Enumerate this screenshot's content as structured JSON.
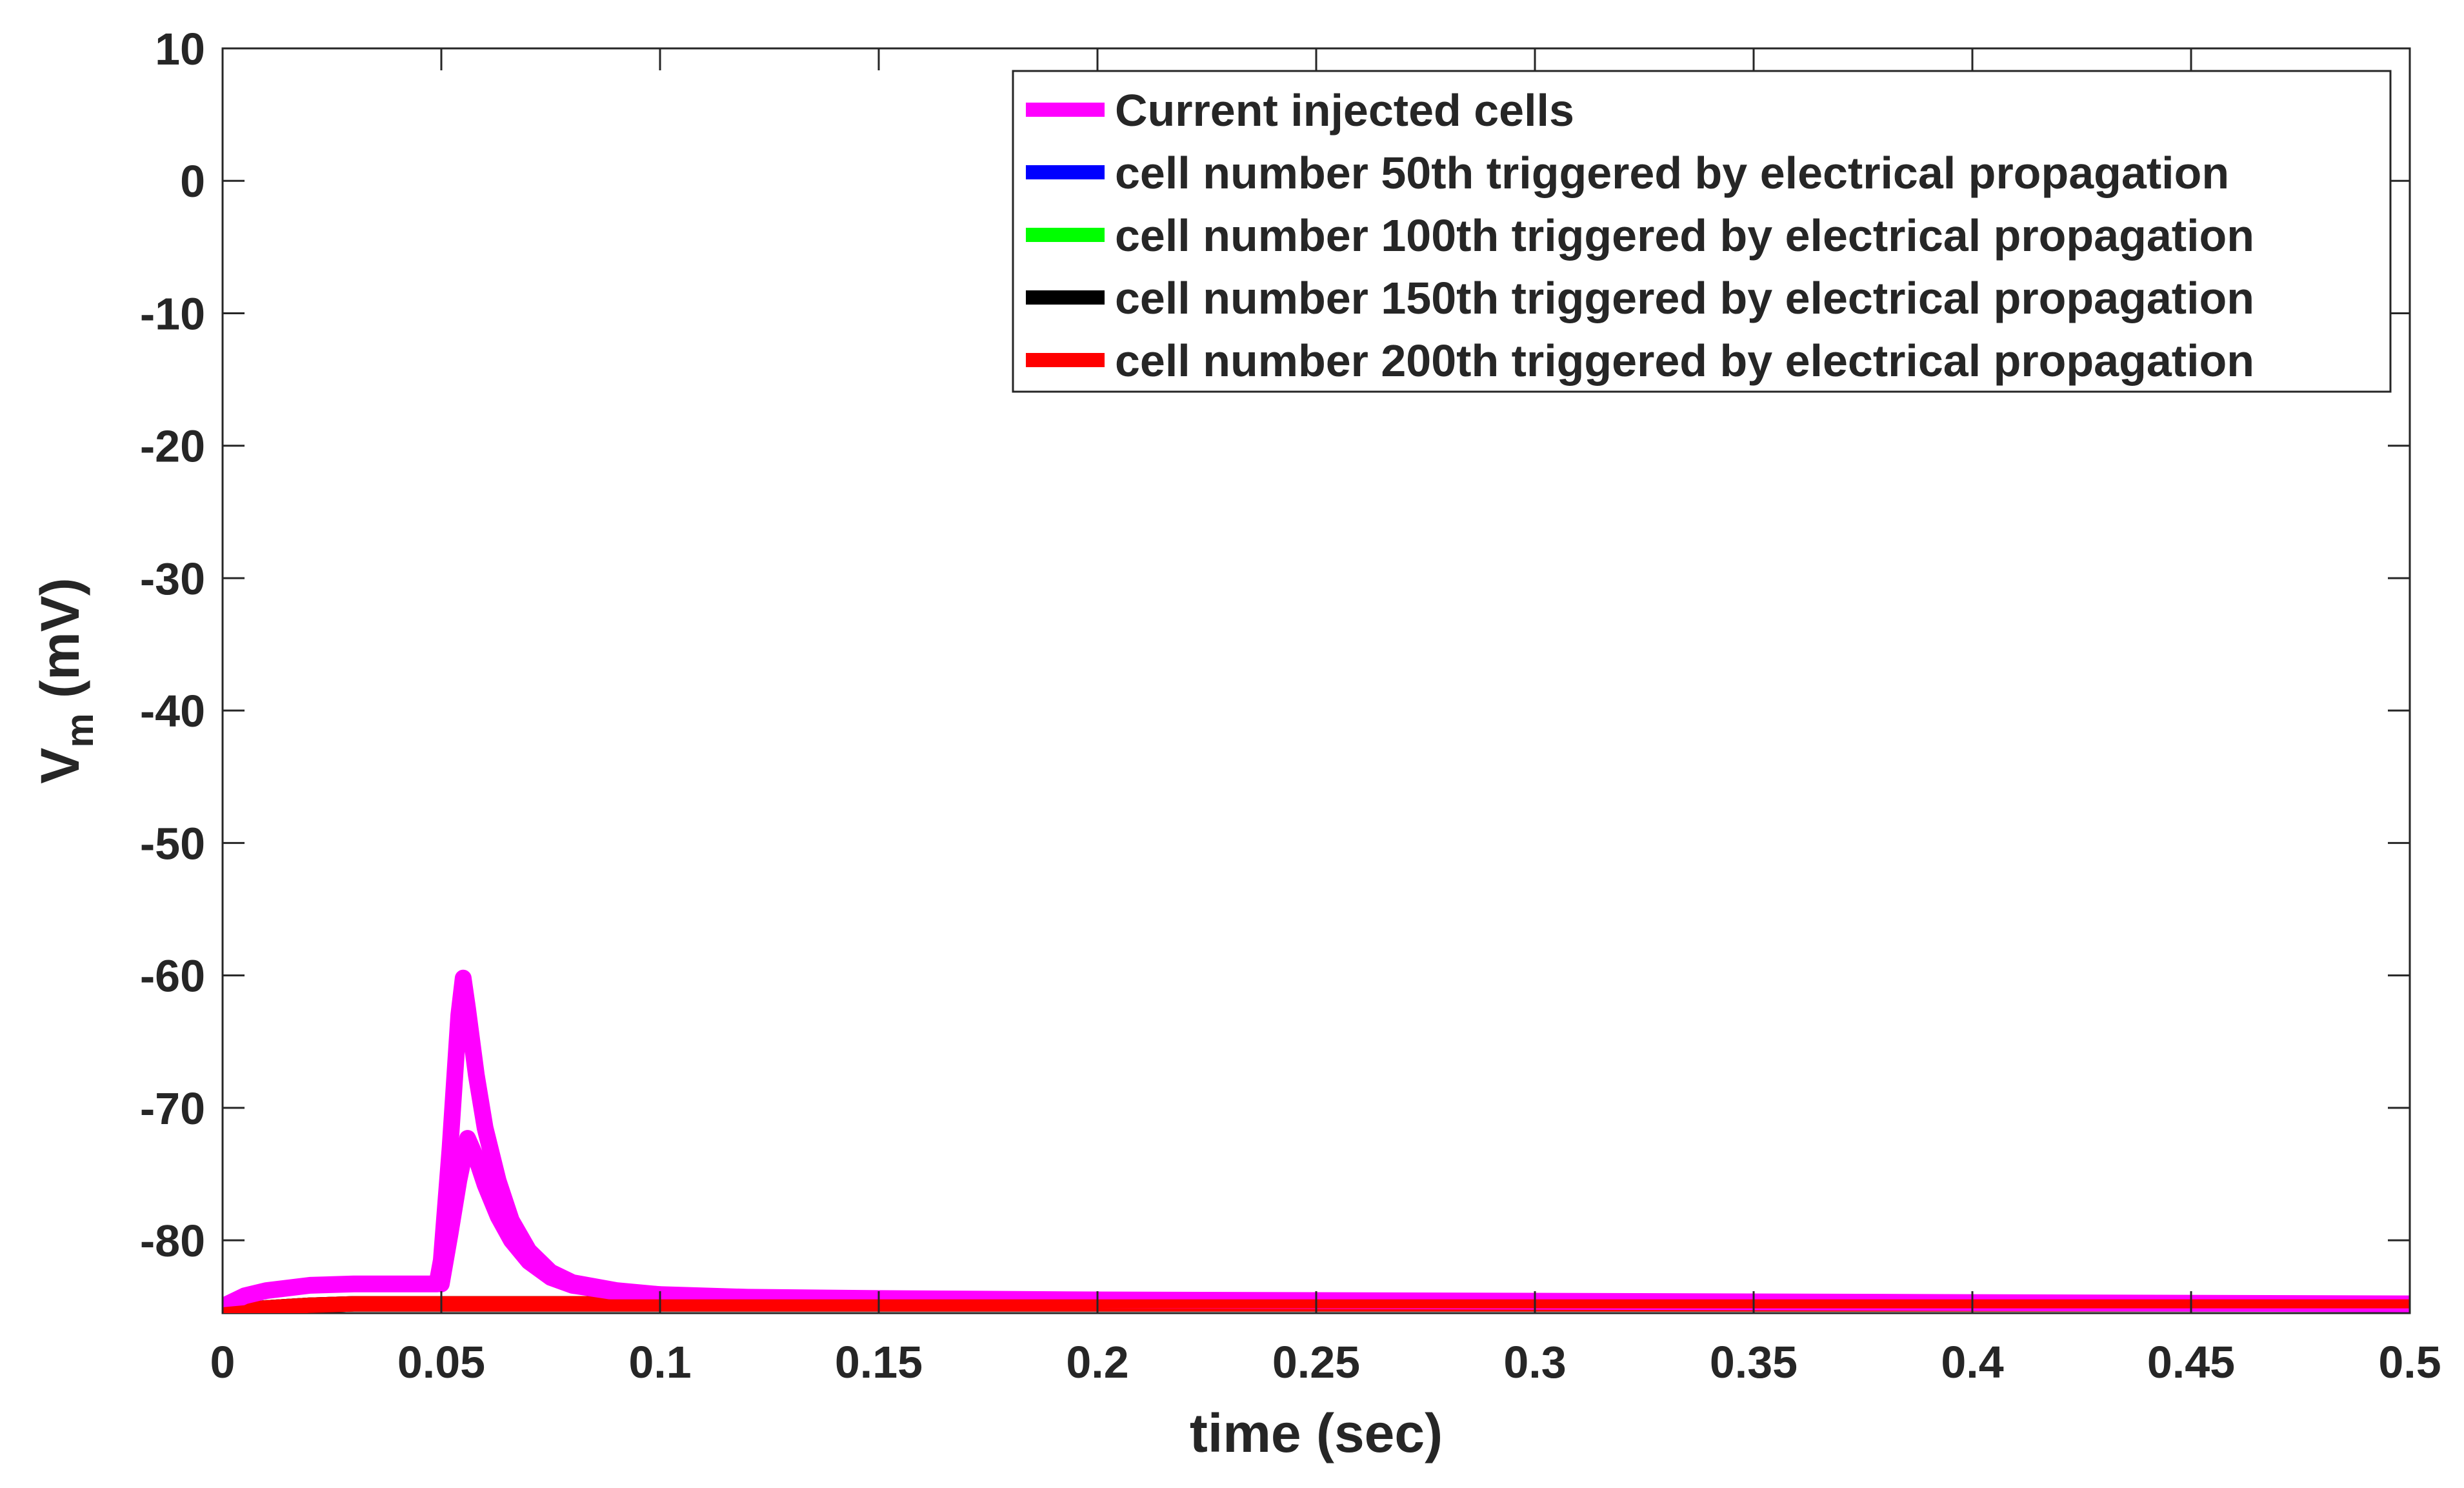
{
  "chart_data": {
    "type": "line",
    "title": "",
    "xlabel": "time (sec)",
    "ylabel_main": "V",
    "ylabel_sub": "m",
    "ylabel_unit": " (mV)",
    "xlim": [
      0,
      0.5
    ],
    "ylim": [
      -85.5,
      10
    ],
    "xticks": [
      0,
      0.05,
      0.1,
      0.15,
      0.2,
      0.25,
      0.3,
      0.35,
      0.4,
      0.45,
      0.5
    ],
    "xtick_labels": [
      "0",
      "0.05",
      "0.1",
      "0.15",
      "0.2",
      "0.25",
      "0.3",
      "0.35",
      "0.4",
      "0.45",
      "0.5"
    ],
    "yticks": [
      10,
      0,
      -10,
      -20,
      -30,
      -40,
      -50,
      -60,
      -70,
      -80
    ],
    "ytick_labels": [
      "10",
      "0",
      "-10",
      "-20",
      "-30",
      "-40",
      "-50",
      "-60",
      "-70",
      "-80"
    ],
    "grid": false,
    "legend_position": "top-right",
    "series": [
      {
        "name": "Current injected cells",
        "color": "#ff00ff",
        "lines": [
          {
            "x": [
              0,
              0.005,
              0.01,
              0.02,
              0.03,
              0.04,
              0.049,
              0.05,
              0.052,
              0.054,
              0.055,
              0.056,
              0.058,
              0.06,
              0.063,
              0.066,
              0.07,
              0.075,
              0.08,
              0.09,
              0.1,
              0.12,
              0.15,
              0.2,
              0.3,
              0.4,
              0.5
            ],
            "y": [
              -85,
              -84.2,
              -83.8,
              -83.4,
              -83.3,
              -83.3,
              -83.3,
              -81.5,
              -73,
              -63,
              -60.2,
              -62.5,
              -67.5,
              -71.5,
              -75.5,
              -78.5,
              -80.8,
              -82.4,
              -83.2,
              -83.8,
              -84.1,
              -84.3,
              -84.4,
              -84.5,
              -84.6,
              -84.7,
              -84.8
            ]
          },
          {
            "x": [
              0.05,
              0.052,
              0.054,
              0.056,
              0.058,
              0.06,
              0.063,
              0.066,
              0.07,
              0.075,
              0.08,
              0.09,
              0.1
            ],
            "y": [
              -83.3,
              -79.5,
              -75.5,
              -72.3,
              -73.8,
              -75.8,
              -78.2,
              -80,
              -81.6,
              -82.8,
              -83.4,
              -83.9,
              -84.1
            ]
          }
        ]
      },
      {
        "name": "cell number 50th triggered by electrical propagation",
        "color": "#0000ff",
        "lines": [
          {
            "x": [
              0,
              0.01,
              0.02,
              0.03,
              0.05,
              0.5
            ],
            "y": [
              -85.4,
              -85.1,
              -84.9,
              -84.8,
              -84.8,
              -84.8
            ]
          }
        ]
      },
      {
        "name": "cell number 100th triggered by electrical propagation",
        "color": "#00ff00",
        "lines": [
          {
            "x": [
              0,
              0.01,
              0.02,
              0.03,
              0.05,
              0.5
            ],
            "y": [
              -85.4,
              -85.1,
              -84.9,
              -84.8,
              -84.8,
              -84.8
            ]
          }
        ]
      },
      {
        "name": "cell number 150th triggered by electrical propagation",
        "color": "#000000",
        "lines": [
          {
            "x": [
              0,
              0.01,
              0.02,
              0.03,
              0.05,
              0.5
            ],
            "y": [
              -85.4,
              -85.1,
              -84.9,
              -84.8,
              -84.8,
              -84.8
            ]
          }
        ]
      },
      {
        "name": "cell number 200th triggered by electrical propagation",
        "color": "#ff0000",
        "lines": [
          {
            "x": [
              0,
              0.01,
              0.02,
              0.03,
              0.05,
              0.5
            ],
            "y": [
              -85.4,
              -85.1,
              -84.9,
              -84.8,
              -84.8,
              -84.8
            ]
          }
        ]
      }
    ]
  }
}
